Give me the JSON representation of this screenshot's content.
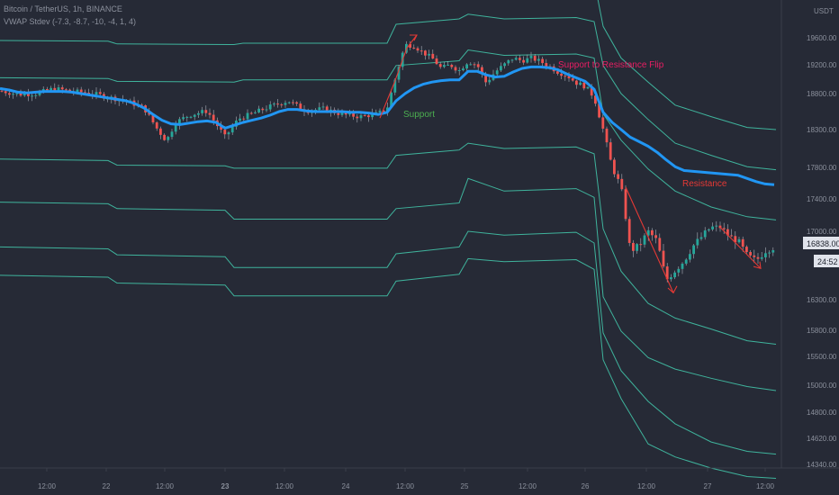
{
  "header": {
    "symbol_line": "Bitcoin / TetherUS, 1h, BINANCE",
    "indicator_line": "VWAP Stdev (-7.3, -8.7, -10, -4, 1, 4)"
  },
  "price_axis": {
    "currency": "USDT",
    "last_price_label": "16838.00",
    "countdown_label": "24:52"
  },
  "chart_data": {
    "type": "line",
    "title": "Bitcoin / TetherUS, 1h, BINANCE",
    "y_ticks": [
      14340,
      14620,
      14800,
      15000,
      15500,
      15800,
      16300,
      17000,
      17400,
      17800,
      18300,
      18800,
      19200,
      19600
    ],
    "y_tick_labels": [
      "14340.00",
      "14620.00",
      "14800.00",
      "15000.00",
      "15500.00",
      "15800.00",
      "16300.00",
      "17000.00",
      "17400.00",
      "17800.00",
      "18300.00",
      "18800.00",
      "19200.00",
      "19600.00"
    ],
    "x_ticks": [
      "12:00",
      "22",
      "12:00",
      "23",
      "12:00",
      "24",
      "12:00",
      "25",
      "12:00",
      "26",
      "12:00",
      "27",
      "12:00"
    ],
    "x_tick_bold": [
      "23"
    ],
    "grid": false,
    "vwap_color": "#2196f3",
    "band_color": "#3fb39c",
    "up_color": "#26a69a",
    "down_color": "#ef5350",
    "vwap": [
      [
        0,
        18870
      ],
      [
        10,
        18850
      ],
      [
        20,
        18820
      ],
      [
        30,
        18810
      ],
      [
        40,
        18820
      ],
      [
        50,
        18830
      ],
      [
        60,
        18830
      ],
      [
        70,
        18830
      ],
      [
        80,
        18820
      ],
      [
        90,
        18800
      ],
      [
        100,
        18780
      ],
      [
        110,
        18760
      ],
      [
        120,
        18740
      ],
      [
        130,
        18720
      ],
      [
        140,
        18700
      ],
      [
        150,
        18660
      ],
      [
        160,
        18600
      ],
      [
        170,
        18510
      ],
      [
        180,
        18430
      ],
      [
        190,
        18380
      ],
      [
        200,
        18370
      ],
      [
        210,
        18390
      ],
      [
        220,
        18410
      ],
      [
        230,
        18420
      ],
      [
        240,
        18400
      ],
      [
        250,
        18320
      ],
      [
        260,
        18360
      ],
      [
        270,
        18400
      ],
      [
        280,
        18430
      ],
      [
        290,
        18460
      ],
      [
        300,
        18500
      ],
      [
        310,
        18550
      ],
      [
        320,
        18580
      ],
      [
        330,
        18580
      ],
      [
        340,
        18560
      ],
      [
        350,
        18550
      ],
      [
        360,
        18550
      ],
      [
        370,
        18550
      ],
      [
        380,
        18550
      ],
      [
        390,
        18540
      ],
      [
        400,
        18540
      ],
      [
        410,
        18530
      ],
      [
        420,
        18510
      ],
      [
        430,
        18540
      ],
      [
        440,
        18700
      ],
      [
        450,
        18800
      ],
      [
        460,
        18880
      ],
      [
        470,
        18930
      ],
      [
        480,
        18960
      ],
      [
        490,
        18980
      ],
      [
        500,
        18990
      ],
      [
        510,
        18990
      ],
      [
        520,
        19110
      ],
      [
        530,
        19110
      ],
      [
        540,
        19060
      ],
      [
        550,
        19030
      ],
      [
        560,
        19040
      ],
      [
        570,
        19100
      ],
      [
        580,
        19150
      ],
      [
        590,
        19170
      ],
      [
        600,
        19170
      ],
      [
        610,
        19160
      ],
      [
        620,
        19130
      ],
      [
        630,
        19070
      ],
      [
        640,
        19020
      ],
      [
        650,
        18970
      ],
      [
        660,
        18860
      ],
      [
        670,
        18540
      ],
      [
        680,
        18400
      ],
      [
        690,
        18300
      ],
      [
        700,
        18200
      ],
      [
        710,
        18140
      ],
      [
        720,
        18080
      ],
      [
        730,
        18000
      ],
      [
        740,
        17900
      ],
      [
        750,
        17810
      ],
      [
        760,
        17760
      ],
      [
        770,
        17750
      ],
      [
        780,
        17740
      ],
      [
        790,
        17730
      ],
      [
        800,
        17720
      ],
      [
        810,
        17710
      ],
      [
        820,
        17700
      ],
      [
        830,
        17660
      ],
      [
        840,
        17620
      ],
      [
        850,
        17590
      ],
      [
        860,
        17580
      ]
    ],
    "bands": [
      {
        "name": "+3",
        "points": [
          [
            0,
            20270
          ],
          [
            120,
            20260
          ],
          [
            130,
            20220
          ],
          [
            260,
            20210
          ],
          [
            270,
            20230
          ],
          [
            430,
            20230
          ],
          [
            440,
            20450
          ],
          [
            520,
            20530
          ],
          [
            560,
            20480
          ],
          [
            640,
            20490
          ],
          [
            660,
            20450
          ],
          [
            670,
            19770
          ],
          [
            690,
            19300
          ],
          [
            720,
            18960
          ],
          [
            750,
            18640
          ],
          [
            790,
            18480
          ],
          [
            830,
            18330
          ],
          [
            862,
            18300
          ]
        ]
      },
      {
        "name": "+2",
        "points": [
          [
            0,
            19560
          ],
          [
            120,
            19550
          ],
          [
            130,
            19510
          ],
          [
            260,
            19500
          ],
          [
            270,
            19520
          ],
          [
            430,
            19520
          ],
          [
            440,
            19800
          ],
          [
            510,
            19880
          ],
          [
            520,
            19950
          ],
          [
            560,
            19880
          ],
          [
            640,
            19900
          ],
          [
            660,
            19840
          ],
          [
            670,
            19190
          ],
          [
            690,
            18800
          ],
          [
            720,
            18440
          ],
          [
            750,
            18120
          ],
          [
            790,
            17960
          ],
          [
            830,
            17810
          ],
          [
            862,
            17770
          ]
        ]
      },
      {
        "name": "+1",
        "points": [
          [
            0,
            19020
          ],
          [
            120,
            19010
          ],
          [
            130,
            18970
          ],
          [
            260,
            18960
          ],
          [
            270,
            18990
          ],
          [
            430,
            18990
          ],
          [
            440,
            19190
          ],
          [
            510,
            19260
          ],
          [
            520,
            19420
          ],
          [
            560,
            19340
          ],
          [
            640,
            19360
          ],
          [
            660,
            19300
          ],
          [
            670,
            18520
          ],
          [
            690,
            18160
          ],
          [
            720,
            17780
          ],
          [
            750,
            17500
          ],
          [
            790,
            17300
          ],
          [
            830,
            17180
          ],
          [
            862,
            17140
          ]
        ]
      },
      {
        "name": "-1",
        "points": [
          [
            0,
            17910
          ],
          [
            120,
            17890
          ],
          [
            130,
            17830
          ],
          [
            250,
            17820
          ],
          [
            260,
            17790
          ],
          [
            430,
            17790
          ],
          [
            440,
            17960
          ],
          [
            510,
            18030
          ],
          [
            520,
            18120
          ],
          [
            560,
            18050
          ],
          [
            640,
            18070
          ],
          [
            660,
            17980
          ],
          [
            670,
            17030
          ],
          [
            690,
            16590
          ],
          [
            720,
            16240
          ],
          [
            750,
            16000
          ],
          [
            790,
            15820
          ],
          [
            830,
            15680
          ],
          [
            862,
            15640
          ]
        ]
      },
      {
        "name": "-2",
        "points": [
          [
            0,
            17360
          ],
          [
            120,
            17340
          ],
          [
            130,
            17280
          ],
          [
            250,
            17260
          ],
          [
            260,
            17150
          ],
          [
            430,
            17150
          ],
          [
            440,
            17280
          ],
          [
            510,
            17350
          ],
          [
            520,
            17660
          ],
          [
            560,
            17500
          ],
          [
            640,
            17530
          ],
          [
            660,
            17420
          ],
          [
            670,
            16330
          ],
          [
            690,
            15790
          ],
          [
            720,
            15480
          ],
          [
            750,
            15280
          ],
          [
            790,
            15120
          ],
          [
            830,
            14990
          ],
          [
            862,
            14960
          ]
        ]
      },
      {
        "name": "-3",
        "points": [
          [
            0,
            16840
          ],
          [
            120,
            16820
          ],
          [
            130,
            16760
          ],
          [
            250,
            16740
          ],
          [
            260,
            16630
          ],
          [
            430,
            16630
          ],
          [
            440,
            16770
          ],
          [
            510,
            16840
          ],
          [
            520,
            17000
          ],
          [
            560,
            16960
          ],
          [
            640,
            16990
          ],
          [
            660,
            16880
          ],
          [
            670,
            15770
          ],
          [
            690,
            15250
          ],
          [
            720,
            14880
          ],
          [
            750,
            14720
          ],
          [
            790,
            14580
          ],
          [
            830,
            14480
          ],
          [
            862,
            14450
          ]
        ]
      },
      {
        "name": "-4",
        "points": [
          [
            0,
            16550
          ],
          [
            120,
            16530
          ],
          [
            130,
            16470
          ],
          [
            250,
            16450
          ],
          [
            260,
            16340
          ],
          [
            430,
            16340
          ],
          [
            440,
            16490
          ],
          [
            510,
            16560
          ],
          [
            520,
            16720
          ],
          [
            560,
            16690
          ],
          [
            640,
            16710
          ],
          [
            660,
            16610
          ],
          [
            670,
            15440
          ],
          [
            690,
            14900
          ],
          [
            720,
            14560
          ],
          [
            750,
            14420
          ],
          [
            790,
            14300
          ],
          [
            830,
            14210
          ],
          [
            862,
            14190
          ]
        ]
      }
    ],
    "close": [
      [
        0,
        18840
      ],
      [
        20,
        18790
      ],
      [
        40,
        18800
      ],
      [
        60,
        18870
      ],
      [
        80,
        18830
      ],
      [
        100,
        18810
      ],
      [
        120,
        18750
      ],
      [
        140,
        18700
      ],
      [
        160,
        18600
      ],
      [
        175,
        18300
      ],
      [
        185,
        18150
      ],
      [
        195,
        18400
      ],
      [
        210,
        18500
      ],
      [
        230,
        18560
      ],
      [
        250,
        18200
      ],
      [
        265,
        18450
      ],
      [
        280,
        18520
      ],
      [
        300,
        18620
      ],
      [
        320,
        18700
      ],
      [
        340,
        18560
      ],
      [
        360,
        18590
      ],
      [
        380,
        18510
      ],
      [
        400,
        18480
      ],
      [
        420,
        18520
      ],
      [
        430,
        18600
      ],
      [
        440,
        19050
      ],
      [
        450,
        19500
      ],
      [
        460,
        19480
      ],
      [
        470,
        19380
      ],
      [
        480,
        19300
      ],
      [
        490,
        19150
      ],
      [
        500,
        19200
      ],
      [
        510,
        19120
      ],
      [
        520,
        19250
      ],
      [
        530,
        19200
      ],
      [
        540,
        18950
      ],
      [
        550,
        19100
      ],
      [
        560,
        19200
      ],
      [
        570,
        19300
      ],
      [
        580,
        19260
      ],
      [
        590,
        19300
      ],
      [
        600,
        19250
      ],
      [
        610,
        19180
      ],
      [
        620,
        19100
      ],
      [
        630,
        19050
      ],
      [
        640,
        18950
      ],
      [
        650,
        18900
      ],
      [
        660,
        18750
      ],
      [
        670,
        18300
      ],
      [
        680,
        17800
      ],
      [
        690,
        17550
      ],
      [
        700,
        16800
      ],
      [
        710,
        16850
      ],
      [
        720,
        17000
      ],
      [
        730,
        16900
      ],
      [
        740,
        16500
      ],
      [
        750,
        16600
      ],
      [
        760,
        16700
      ],
      [
        770,
        16850
      ],
      [
        780,
        16950
      ],
      [
        790,
        17050
      ],
      [
        800,
        17050
      ],
      [
        810,
        16950
      ],
      [
        820,
        16900
      ],
      [
        830,
        16750
      ],
      [
        840,
        16700
      ],
      [
        850,
        16800
      ],
      [
        860,
        16838
      ]
    ],
    "annotations": [
      {
        "text": "Support",
        "color": "#4caf50"
      },
      {
        "text": "Support to Resistance Flip",
        "color": "#e91e63"
      },
      {
        "text": "Resistance",
        "color": "#e53935"
      }
    ]
  }
}
